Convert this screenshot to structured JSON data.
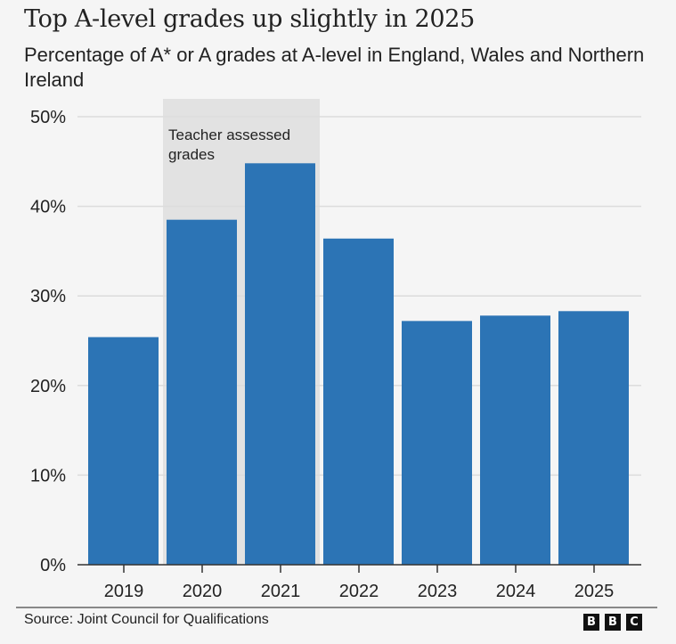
{
  "title": "Top A-level grades up slightly in 2025",
  "subtitle": "Percentage of A* or A grades at A-level in England, Wales and Northern Ireland",
  "source": "Source: Joint Council for Qualifications",
  "logo": [
    "B",
    "B",
    "C"
  ],
  "colors": {
    "bar": "#2c74b5",
    "background": "#f5f5f5",
    "shaded_region": "#e2e2e2",
    "grid": "#dcdcdc",
    "axis": "#333333"
  },
  "chart_data": {
    "type": "bar",
    "title": "Top A-level grades up slightly in 2025",
    "subtitle": "Percentage of A* or A grades at A-level in England, Wales and Northern Ireland",
    "xlabel": "",
    "ylabel": "",
    "categories": [
      "2019",
      "2020",
      "2021",
      "2022",
      "2023",
      "2024",
      "2025"
    ],
    "values": [
      25.4,
      38.5,
      44.8,
      36.4,
      27.2,
      27.8,
      28.3
    ],
    "unit": "%",
    "ylim": [
      0,
      50
    ],
    "yticks": [
      0,
      10,
      20,
      30,
      40,
      50
    ],
    "ytick_labels": [
      "0%",
      "10%",
      "20%",
      "30%",
      "40%",
      "50%"
    ],
    "grid": true,
    "annotations": [
      {
        "type": "shaded_range",
        "from": "2020",
        "to": "2021",
        "label_lines": [
          "Teacher assessed",
          "grades"
        ]
      }
    ]
  }
}
